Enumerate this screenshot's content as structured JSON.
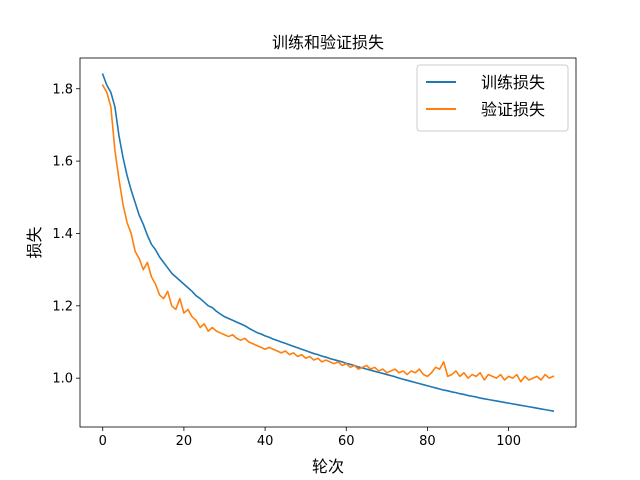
{
  "chart_data": {
    "type": "line",
    "title": "训练和验证损失",
    "xlabel": "轮次",
    "ylabel": "损失",
    "xlim": [
      -5.6,
      116.6
    ],
    "ylim": [
      0.865,
      1.885
    ],
    "xticks": [
      0,
      20,
      40,
      60,
      80,
      100
    ],
    "yticks": [
      1.0,
      1.2,
      1.4,
      1.6,
      1.8
    ],
    "xtick_labels": [
      "0",
      "20",
      "40",
      "60",
      "80",
      "100"
    ],
    "ytick_labels": [
      "1.0",
      "1.2",
      "1.4",
      "1.6",
      "1.8"
    ],
    "grid": false,
    "legend_position": "top-right",
    "series": [
      {
        "name": "训练损失",
        "color": "#1f77b4",
        "x": [
          0,
          1,
          2,
          3,
          4,
          5,
          6,
          7,
          8,
          9,
          10,
          11,
          12,
          13,
          14,
          15,
          16,
          17,
          18,
          19,
          20,
          21,
          22,
          23,
          24,
          25,
          26,
          27,
          28,
          29,
          30,
          31,
          32,
          33,
          34,
          35,
          36,
          37,
          38,
          39,
          40,
          41,
          42,
          43,
          44,
          45,
          46,
          47,
          48,
          49,
          50,
          51,
          52,
          53,
          54,
          55,
          56,
          57,
          58,
          59,
          60,
          61,
          62,
          63,
          64,
          65,
          66,
          67,
          68,
          69,
          70,
          71,
          72,
          73,
          74,
          75,
          76,
          77,
          78,
          79,
          80,
          81,
          82,
          83,
          84,
          85,
          86,
          87,
          88,
          89,
          90,
          91,
          92,
          93,
          94,
          95,
          96,
          97,
          98,
          99,
          100,
          101,
          102,
          103,
          104,
          105,
          106,
          107,
          108,
          109,
          110,
          111
        ],
        "values": [
          1.84,
          1.81,
          1.79,
          1.75,
          1.67,
          1.61,
          1.56,
          1.52,
          1.485,
          1.45,
          1.425,
          1.395,
          1.37,
          1.355,
          1.335,
          1.32,
          1.305,
          1.29,
          1.28,
          1.27,
          1.26,
          1.25,
          1.24,
          1.228,
          1.22,
          1.21,
          1.2,
          1.195,
          1.185,
          1.177,
          1.17,
          1.165,
          1.16,
          1.155,
          1.15,
          1.145,
          1.138,
          1.132,
          1.126,
          1.122,
          1.117,
          1.113,
          1.108,
          1.104,
          1.1,
          1.096,
          1.092,
          1.088,
          1.084,
          1.08,
          1.076,
          1.072,
          1.068,
          1.065,
          1.061,
          1.058,
          1.054,
          1.051,
          1.048,
          1.045,
          1.041,
          1.038,
          1.035,
          1.031,
          1.028,
          1.025,
          1.022,
          1.019,
          1.016,
          1.013,
          1.01,
          1.007,
          1.004,
          1.0,
          0.997,
          0.994,
          0.991,
          0.988,
          0.985,
          0.982,
          0.979,
          0.976,
          0.973,
          0.97,
          0.967,
          0.965,
          0.962,
          0.96,
          0.957,
          0.955,
          0.952,
          0.95,
          0.948,
          0.945,
          0.943,
          0.941,
          0.939,
          0.937,
          0.935,
          0.933,
          0.931,
          0.929,
          0.927,
          0.925,
          0.923,
          0.921,
          0.919,
          0.917,
          0.915,
          0.913,
          0.911,
          0.909
        ]
      },
      {
        "name": "验证损失",
        "color": "#ff7f0e",
        "x": [
          0,
          1,
          2,
          3,
          4,
          5,
          6,
          7,
          8,
          9,
          10,
          11,
          12,
          13,
          14,
          15,
          16,
          17,
          18,
          19,
          20,
          21,
          22,
          23,
          24,
          25,
          26,
          27,
          28,
          29,
          30,
          31,
          32,
          33,
          34,
          35,
          36,
          37,
          38,
          39,
          40,
          41,
          42,
          43,
          44,
          45,
          46,
          47,
          48,
          49,
          50,
          51,
          52,
          53,
          54,
          55,
          56,
          57,
          58,
          59,
          60,
          61,
          62,
          63,
          64,
          65,
          66,
          67,
          68,
          69,
          70,
          71,
          72,
          73,
          74,
          75,
          76,
          77,
          78,
          79,
          80,
          81,
          82,
          83,
          84,
          85,
          86,
          87,
          88,
          89,
          90,
          91,
          92,
          93,
          94,
          95,
          96,
          97,
          98,
          99,
          100,
          101,
          102,
          103,
          104,
          105,
          106,
          107,
          108,
          109,
          110,
          111
        ],
        "values": [
          1.81,
          1.79,
          1.75,
          1.63,
          1.55,
          1.48,
          1.43,
          1.4,
          1.35,
          1.33,
          1.3,
          1.32,
          1.28,
          1.26,
          1.23,
          1.22,
          1.24,
          1.2,
          1.19,
          1.22,
          1.18,
          1.19,
          1.17,
          1.16,
          1.14,
          1.15,
          1.13,
          1.14,
          1.13,
          1.125,
          1.12,
          1.115,
          1.12,
          1.11,
          1.105,
          1.11,
          1.1,
          1.095,
          1.09,
          1.085,
          1.08,
          1.085,
          1.08,
          1.075,
          1.07,
          1.075,
          1.065,
          1.07,
          1.06,
          1.065,
          1.055,
          1.06,
          1.05,
          1.055,
          1.045,
          1.05,
          1.045,
          1.04,
          1.045,
          1.035,
          1.04,
          1.03,
          1.035,
          1.025,
          1.03,
          1.035,
          1.025,
          1.03,
          1.02,
          1.025,
          1.015,
          1.02,
          1.025,
          1.015,
          1.02,
          1.01,
          1.02,
          1.015,
          1.025,
          1.01,
          1.005,
          1.015,
          1.03,
          1.025,
          1.045,
          1.005,
          1.01,
          1.02,
          1.005,
          1.015,
          1.0,
          1.01,
          1.005,
          1.015,
          0.995,
          1.01,
          1.005,
          1.0,
          1.01,
          0.995,
          1.005,
          1.0,
          1.01,
          0.99,
          1.005,
          0.995,
          1.0,
          1.005,
          0.995,
          1.01,
          1.0,
          1.005
        ]
      }
    ]
  }
}
